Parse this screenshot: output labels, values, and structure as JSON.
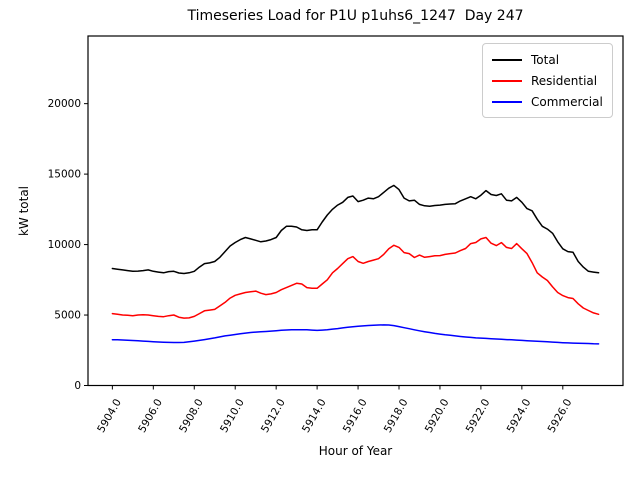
{
  "chart_data": {
    "type": "line",
    "title": "Timeseries Load for P1U p1uhs6_1247  Day 247",
    "xlabel": "Hour of Year",
    "ylabel": "kW total",
    "grid": false,
    "legend_position": "upper right",
    "xlim": [
      5902.81,
      5928.94
    ],
    "ylim": [
      0,
      24800
    ],
    "x_ticks": [
      5904,
      5906,
      5908,
      5910,
      5912,
      5914,
      5916,
      5918,
      5920,
      5922,
      5924,
      5926
    ],
    "x_tick_labels": [
      "5904.0",
      "5906.0",
      "5908.0",
      "5910.0",
      "5912.0",
      "5914.0",
      "5916.0",
      "5918.0",
      "5920.0",
      "5922.0",
      "5924.0",
      "5926.0"
    ],
    "y_ticks": [
      0,
      5000,
      10000,
      15000,
      20000
    ],
    "y_tick_labels": [
      "0",
      "5000",
      "10000",
      "15000",
      "20000"
    ],
    "x": [
      5904.0,
      5904.25,
      5904.5,
      5904.75,
      5905.0,
      5905.25,
      5905.5,
      5905.75,
      5906.0,
      5906.25,
      5906.5,
      5906.75,
      5907.0,
      5907.25,
      5907.5,
      5907.75,
      5908.0,
      5908.25,
      5908.5,
      5908.75,
      5909.0,
      5909.25,
      5909.5,
      5909.75,
      5910.0,
      5910.25,
      5910.5,
      5910.75,
      5911.0,
      5911.25,
      5911.5,
      5911.75,
      5912.0,
      5912.25,
      5912.5,
      5912.75,
      5913.0,
      5913.25,
      5913.5,
      5913.75,
      5914.0,
      5914.25,
      5914.5,
      5914.75,
      5915.0,
      5915.25,
      5915.5,
      5915.75,
      5916.0,
      5916.25,
      5916.5,
      5916.75,
      5917.0,
      5917.25,
      5917.5,
      5917.75,
      5918.0,
      5918.25,
      5918.5,
      5918.75,
      5919.0,
      5919.25,
      5919.5,
      5919.75,
      5920.0,
      5920.25,
      5920.5,
      5920.75,
      5921.0,
      5921.25,
      5921.5,
      5921.75,
      5922.0,
      5922.25,
      5922.5,
      5922.75,
      5923.0,
      5923.25,
      5923.5,
      5923.75,
      5924.0,
      5924.25,
      5924.5,
      5924.75,
      5925.0,
      5925.25,
      5925.5,
      5925.75,
      5926.0,
      5926.25,
      5926.5,
      5926.75,
      5927.0,
      5927.25,
      5927.5,
      5927.75
    ],
    "series": [
      {
        "name": "Total",
        "color": "#000000",
        "values": [
          8300,
          8250,
          8200,
          8150,
          8100,
          8120,
          8150,
          8200,
          8100,
          8050,
          8000,
          8080,
          8100,
          7980,
          7950,
          8000,
          8100,
          8400,
          8650,
          8700,
          8800,
          9100,
          9500,
          9900,
          10150,
          10350,
          10500,
          10400,
          10300,
          10200,
          10250,
          10350,
          10500,
          11000,
          11300,
          11300,
          11250,
          11050,
          11000,
          11050,
          11050,
          11600,
          12100,
          12500,
          12800,
          13000,
          13350,
          13450,
          13050,
          13150,
          13300,
          13250,
          13400,
          13700,
          14000,
          14200,
          13900,
          13300,
          13100,
          13150,
          12850,
          12750,
          12720,
          12770,
          12800,
          12850,
          12880,
          12900,
          13100,
          13250,
          13400,
          13250,
          13500,
          13830,
          13550,
          13480,
          13600,
          13150,
          13100,
          13350,
          13000,
          12550,
          12400,
          11800,
          11300,
          11100,
          10800,
          10200,
          9700,
          9500,
          9450,
          8800,
          8400,
          8100,
          8050,
          8000
        ]
      },
      {
        "name": "Residential",
        "color": "#ff0000",
        "values": [
          5100,
          5050,
          5000,
          4980,
          4950,
          5000,
          5020,
          5000,
          4950,
          4900,
          4880,
          4950,
          5000,
          4850,
          4780,
          4800,
          4900,
          5100,
          5300,
          5350,
          5400,
          5650,
          5900,
          6200,
          6400,
          6500,
          6600,
          6650,
          6700,
          6550,
          6450,
          6500,
          6600,
          6800,
          6950,
          7100,
          7250,
          7200,
          6950,
          6900,
          6900,
          7200,
          7500,
          8000,
          8300,
          8650,
          9000,
          9150,
          8800,
          8670,
          8800,
          8900,
          9000,
          9300,
          9700,
          9950,
          9800,
          9430,
          9360,
          9080,
          9250,
          9100,
          9150,
          9200,
          9220,
          9300,
          9360,
          9400,
          9570,
          9720,
          10070,
          10150,
          10400,
          10500,
          10100,
          9930,
          10140,
          9800,
          9720,
          10070,
          9700,
          9360,
          8720,
          8000,
          7700,
          7450,
          7000,
          6600,
          6380,
          6240,
          6170,
          5800,
          5500,
          5320,
          5150,
          5050
        ]
      },
      {
        "name": "Commercial",
        "color": "#0000ff",
        "values": [
          3250,
          3240,
          3230,
          3210,
          3190,
          3170,
          3150,
          3130,
          3110,
          3090,
          3070,
          3060,
          3050,
          3050,
          3060,
          3100,
          3150,
          3200,
          3260,
          3320,
          3380,
          3450,
          3520,
          3570,
          3620,
          3670,
          3720,
          3760,
          3790,
          3810,
          3830,
          3860,
          3890,
          3920,
          3940,
          3950,
          3960,
          3960,
          3950,
          3930,
          3910,
          3930,
          3960,
          4000,
          4040,
          4090,
          4130,
          4170,
          4200,
          4230,
          4260,
          4280,
          4290,
          4300,
          4290,
          4250,
          4180,
          4100,
          4030,
          3950,
          3880,
          3820,
          3760,
          3700,
          3650,
          3600,
          3560,
          3520,
          3480,
          3440,
          3410,
          3380,
          3360,
          3340,
          3320,
          3300,
          3280,
          3260,
          3240,
          3220,
          3200,
          3180,
          3160,
          3140,
          3120,
          3100,
          3080,
          3060,
          3040,
          3020,
          3010,
          3000,
          2990,
          2980,
          2960,
          2950
        ]
      }
    ]
  }
}
